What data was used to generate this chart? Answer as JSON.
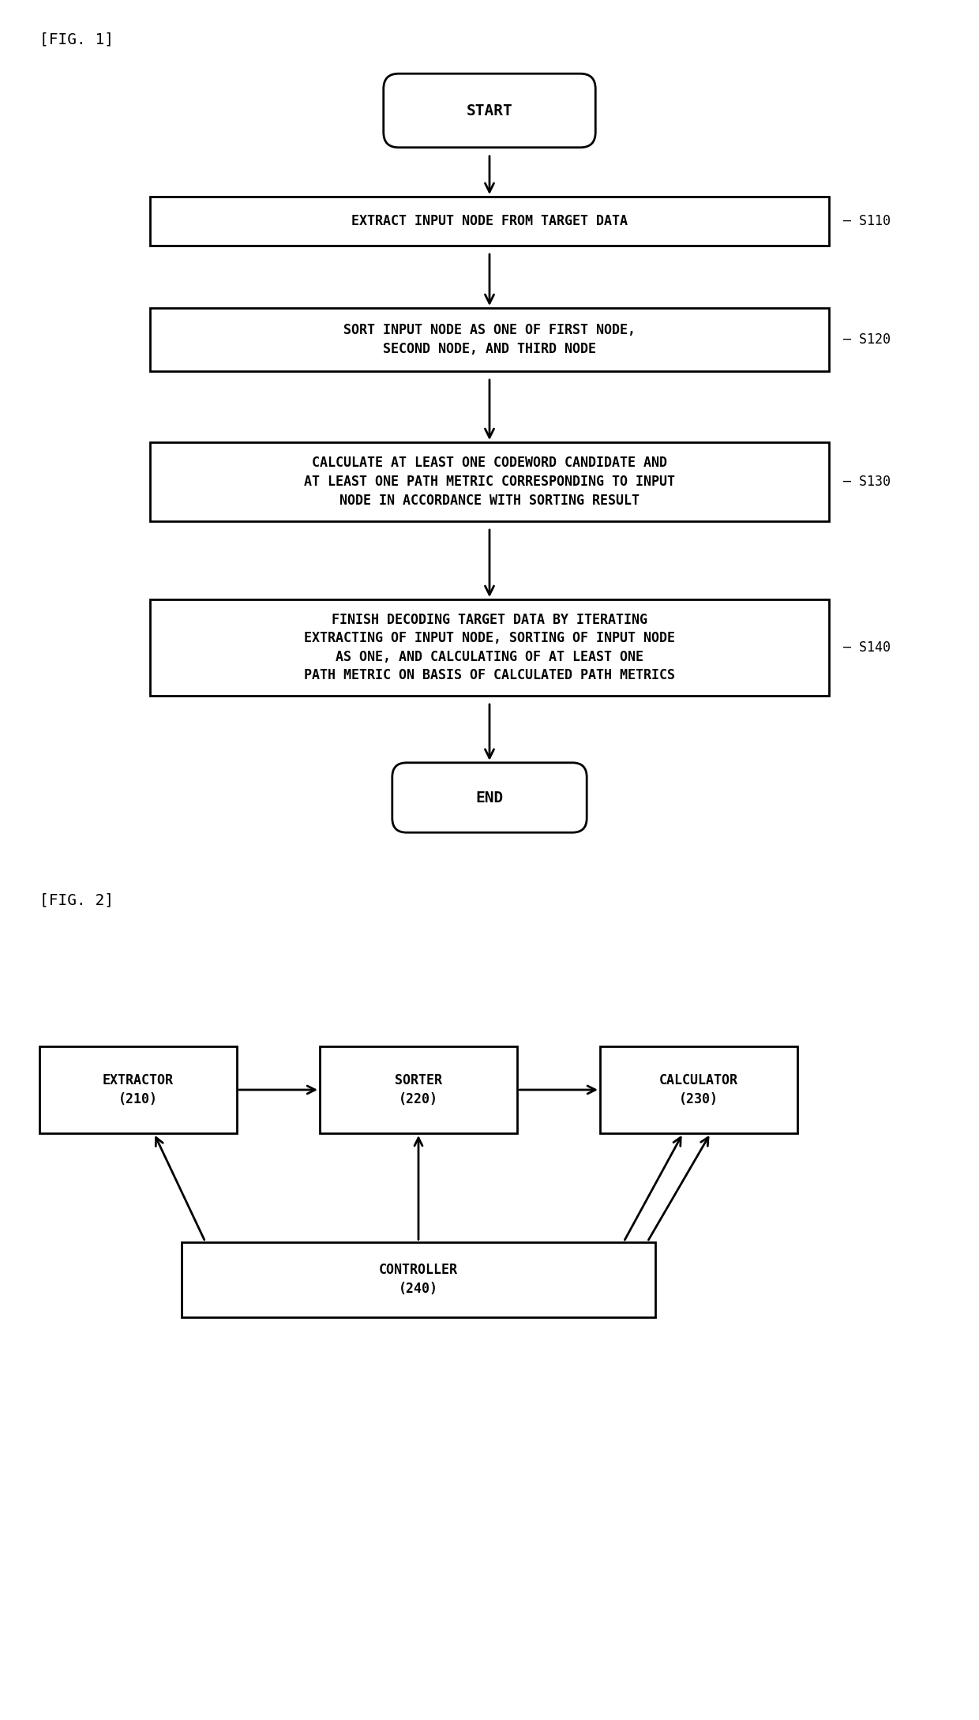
{
  "fig_width": 12.4,
  "fig_height": 21.78,
  "bg_color": "#ffffff",
  "fig1_label": "[FIG. 1]",
  "fig2_label": "[FIG. 2]",
  "flowchart": {
    "start_text": "START",
    "end_text": "END",
    "boxes": [
      {
        "id": "s110",
        "text": "EXTRACT INPUT NODE FROM TARGET DATA",
        "label": "S110"
      },
      {
        "id": "s120",
        "text": "SORT INPUT NODE AS ONE OF FIRST NODE,\nSECOND NODE, AND THIRD NODE",
        "label": "S120"
      },
      {
        "id": "s130",
        "text": "CALCULATE AT LEAST ONE CODEWORD CANDIDATE AND\nAT LEAST ONE PATH METRIC CORRESPONDING TO INPUT\nNODE IN ACCORDANCE WITH SORTING RESULT",
        "label": "S130"
      },
      {
        "id": "s140",
        "text": "FINISH DECODING TARGET DATA BY ITERATING\nEXTRACTING OF INPUT NODE, SORTING OF INPUT NODE\nAS ONE, AND CALCULATING OF AT LEAST ONE\nPATH METRIC ON BASIS OF CALCULATED PATH METRICS",
        "label": "S140"
      }
    ]
  },
  "block_diagram": {
    "extractor_label": "EXTRACTOR\n(210)",
    "sorter_label": "SORTER\n(220)",
    "calculator_label": "CALCULATOR\n(230)",
    "controller_label": "CONTROLLER\n(240)"
  }
}
